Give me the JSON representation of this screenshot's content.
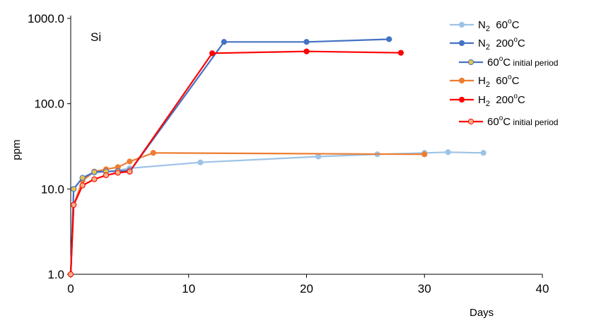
{
  "chart_data": {
    "type": "line",
    "panel_label": "Si",
    "xlabel": "Days",
    "ylabel": "ppm",
    "xlim": [
      0,
      40
    ],
    "ylim": [
      1,
      1000
    ],
    "yscale": "log",
    "grid": false,
    "legend_position": "top-right",
    "x_ticks": [
      {
        "value": 0,
        "label": "0"
      },
      {
        "value": 10,
        "label": "10"
      },
      {
        "value": 20,
        "label": "20"
      },
      {
        "value": 30,
        "label": "30"
      },
      {
        "value": 40,
        "label": "40"
      }
    ],
    "y_ticks": [
      {
        "value": 1,
        "label": "1.0"
      },
      {
        "value": 10,
        "label": "10.0"
      },
      {
        "value": 100,
        "label": "100.0"
      },
      {
        "value": 1000,
        "label": "1000.0"
      }
    ],
    "series": [
      {
        "name_main": "N",
        "name_sub": "2",
        "name_temp": "60",
        "name_deg": "o",
        "name_unit": "C",
        "color": "#9DC3E6",
        "marker_fill": "#9DC3E6",
        "points": [
          [
            0,
            1.0
          ],
          [
            0.25,
            10.0
          ],
          [
            1,
            13.5
          ],
          [
            2,
            15.5
          ],
          [
            3,
            16.0
          ],
          [
            4,
            16.5
          ],
          [
            5,
            17.5
          ],
          [
            11,
            20.5
          ],
          [
            21,
            24.0
          ],
          [
            26,
            25.5
          ],
          [
            30,
            26.5
          ],
          [
            32,
            27.0
          ],
          [
            35,
            26.5
          ]
        ]
      },
      {
        "name_main": "N",
        "name_sub": "2",
        "name_temp": "200",
        "name_deg": "o",
        "name_unit": "C",
        "color": "#4472C4",
        "marker_fill": "#4472C4",
        "points": [
          [
            5,
            16.0
          ],
          [
            13,
            530
          ],
          [
            20,
            530
          ],
          [
            27,
            570
          ]
        ]
      },
      {
        "name_temp": "60",
        "name_deg": "o",
        "name_unit": "C",
        "name_small": " initial period",
        "color": "#4472C4",
        "marker_fill": "#E8C547",
        "points": [
          [
            0,
            1.0
          ],
          [
            0.25,
            10.0
          ],
          [
            1,
            13.5
          ],
          [
            2,
            15.8
          ],
          [
            3,
            16.0
          ],
          [
            4,
            16.2
          ],
          [
            5,
            16.5
          ]
        ]
      },
      {
        "name_main": "H",
        "name_sub": "2",
        "name_temp": "60",
        "name_deg": "o",
        "name_unit": "C",
        "color": "#ED7D31",
        "marker_fill": "#ED7D31",
        "points": [
          [
            0,
            1.0
          ],
          [
            0.25,
            6.5
          ],
          [
            1,
            12.5
          ],
          [
            2,
            16.0
          ],
          [
            3,
            17.0
          ],
          [
            4,
            18.0
          ],
          [
            5,
            21.0
          ],
          [
            7,
            26.5
          ],
          [
            30,
            25.5
          ]
        ]
      },
      {
        "name_main": "H",
        "name_sub": "2",
        "name_temp": "200",
        "name_deg": "o",
        "name_unit": "C",
        "color": "#FF0000",
        "marker_fill": "#FF0000",
        "points": [
          [
            5,
            16.0
          ],
          [
            12,
            390
          ],
          [
            20,
            410
          ],
          [
            28,
            395
          ]
        ]
      },
      {
        "name_temp": "60",
        "name_deg": "o",
        "name_unit": "C",
        "name_small": " initial period",
        "color": "#FF0000",
        "marker_fill": "#F4B183",
        "points": [
          [
            0,
            1.0
          ],
          [
            0.25,
            6.5
          ],
          [
            1,
            11.0
          ],
          [
            2,
            13.0
          ],
          [
            3,
            14.5
          ],
          [
            4,
            15.5
          ],
          [
            5,
            16.0
          ]
        ]
      }
    ]
  }
}
